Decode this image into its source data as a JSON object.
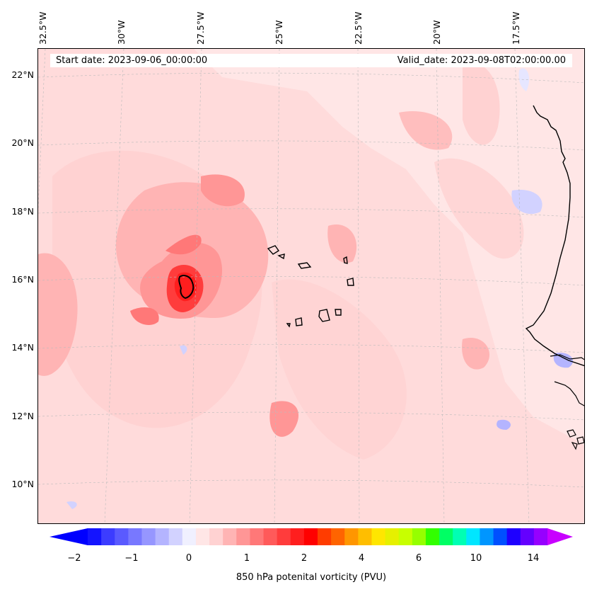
{
  "header": {
    "start_date": "Start date: 2023-09-06_00:00:00",
    "valid_date": "Valid_date: 2023-09-08T02:00:00.00"
  },
  "axes": {
    "longitude_labels": [
      "32.5°W",
      "30°W",
      "27.5°W",
      "25°W",
      "22.5°W",
      "20°W",
      "17.5°W"
    ],
    "latitude_labels": [
      "22°N",
      "20°N",
      "18°N",
      "16°N",
      "14°N",
      "12°N",
      "10°N"
    ]
  },
  "colorbar": {
    "label": "850 hPa potenital vorticity (PVU)",
    "tick_labels": [
      "−2",
      "−1",
      "0",
      "1",
      "2",
      "4",
      "6",
      "10",
      "14"
    ],
    "colors": [
      "#1414ff",
      "#3c3cff",
      "#5a5aff",
      "#7878ff",
      "#9696ff",
      "#b4b4ff",
      "#d2d2ff",
      "#f0f0ff",
      "#ffe6e6",
      "#ffd2d2",
      "#ffb4b4",
      "#ff9696",
      "#ff7878",
      "#ff5a5a",
      "#ff3c3c",
      "#ff1e1e",
      "#ff0000",
      "#ff3c00",
      "#ff6400",
      "#ff9600",
      "#ffbe00",
      "#ffe600",
      "#e6f000",
      "#c8ff00",
      "#96ff00",
      "#32ff00",
      "#00ff64",
      "#00ffb4",
      "#00e6ff",
      "#0096ff",
      "#0050ff",
      "#1e00ff",
      "#6400ff",
      "#9600ff"
    ],
    "under_color": "#0000ff",
    "over_color": "#c800ff"
  },
  "map_colors": {
    "background_pv": "#ffe6e6",
    "light_pv": "#ffd2d2",
    "moderate_pv": "#ffb4b4",
    "strong_pv": "#ff9696",
    "core_pv": "#ff3c3c",
    "peak_pv": "#ff1e1e",
    "negative_pv": "#e6e6ff",
    "coast": "#000000"
  }
}
